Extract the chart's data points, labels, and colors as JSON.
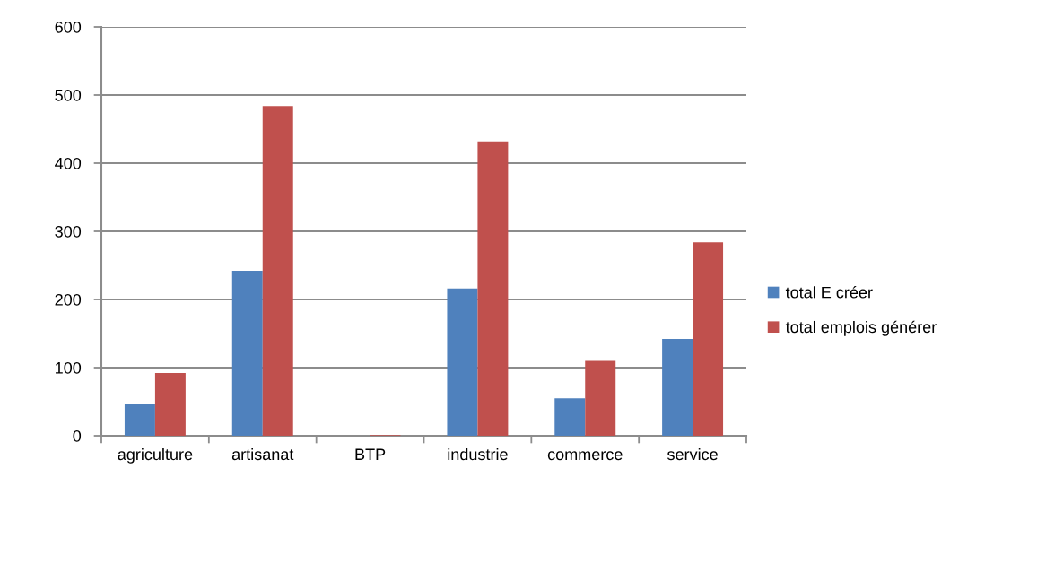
{
  "chart_data": {
    "type": "bar",
    "categories": [
      "agriculture",
      "artisanat",
      "BTP",
      "industrie",
      "commerce",
      "service"
    ],
    "series": [
      {
        "name": "total E créer",
        "color": "#4f81bd",
        "values": [
          46,
          242,
          null,
          216,
          55,
          142
        ]
      },
      {
        "name": "total emplois générer",
        "color": "#c0504d",
        "values": [
          92,
          484,
          1,
          432,
          110,
          284
        ]
      }
    ],
    "ylim": [
      0,
      600
    ],
    "yticks": [
      0,
      100,
      200,
      300,
      400,
      500,
      600
    ],
    "grid": "y",
    "legend": "right"
  }
}
